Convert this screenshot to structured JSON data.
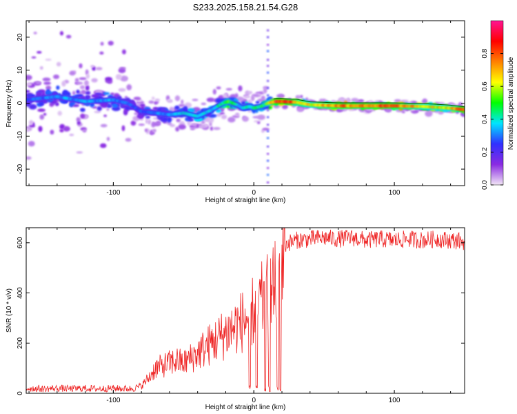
{
  "title": "S233.2025.158.21.54.G28",
  "chart_data": [
    {
      "type": "heatmap",
      "xlabel": "Height of straight line (km)",
      "ylabel": "Frequency (Hz)",
      "xlim": [
        -162,
        150
      ],
      "ylim": [
        -25,
        25
      ],
      "xticks": [
        -100,
        0,
        100
      ],
      "yticks": [
        -20,
        -10,
        0,
        10,
        20
      ],
      "colorbar": {
        "label": "Normalized spectral amplitude",
        "range": [
          0,
          1
        ],
        "ticks": [
          0.0,
          0.2,
          0.4,
          0.6,
          0.8
        ],
        "colors": [
          "#f2e6f6",
          "#8a2be2",
          "#3030ff",
          "#00e5ff",
          "#00ff00",
          "#ffff00",
          "#ff8000",
          "#ff0000",
          "#ff1493"
        ]
      },
      "ridge": {
        "x": [
          -162,
          -140,
          -120,
          -100,
          -90,
          -80,
          -70,
          -60,
          -50,
          -40,
          -30,
          -22,
          -18,
          -12,
          -8,
          -3,
          0,
          5,
          10,
          15,
          20,
          30,
          40,
          60,
          80,
          100,
          120,
          140,
          150
        ],
        "freq": [
          1.0,
          2.0,
          0.5,
          1.0,
          0.0,
          -2.5,
          -3.0,
          -3.5,
          -3.0,
          -4.0,
          -2.0,
          0.0,
          0.5,
          -0.5,
          -1.5,
          -1.0,
          -1.5,
          -1.0,
          0.0,
          0.5,
          0.5,
          0.3,
          -0.5,
          -0.8,
          -0.8,
          -0.8,
          -1.0,
          -1.5,
          -2.0
        ],
        "amplitude": [
          0.3,
          0.35,
          0.35,
          0.35,
          0.3,
          0.3,
          0.35,
          0.35,
          0.4,
          0.45,
          0.4,
          0.5,
          0.6,
          0.4,
          0.4,
          0.5,
          0.5,
          0.5,
          0.6,
          0.9,
          0.95,
          0.8,
          0.7,
          0.85,
          0.85,
          0.85,
          0.7,
          0.7,
          0.9
        ]
      }
    },
    {
      "type": "line",
      "xlabel": "Height of straight line (km)",
      "ylabel": "SNR (10 * v/v)",
      "xlim": [
        -162,
        150
      ],
      "ylim": [
        0,
        660
      ],
      "xticks": [
        -100,
        0,
        100
      ],
      "yticks": [
        0,
        200,
        400,
        600
      ],
      "color": "#ee2222",
      "series": [
        {
          "x": [
            -162,
            -150,
            -140,
            -130,
            -120,
            -110,
            -100,
            -90,
            -85,
            -80,
            -75,
            -70,
            -65,
            -60,
            -55,
            -50,
            -45,
            -40,
            -35,
            -30,
            -25,
            -20,
            -15,
            -10,
            -5,
            0,
            5,
            10,
            15,
            18,
            20,
            22,
            25,
            30,
            40,
            50,
            60,
            70,
            80,
            90,
            100,
            110,
            120,
            130,
            140,
            150
          ],
          "values": [
            20,
            18,
            20,
            18,
            20,
            18,
            20,
            18,
            20,
            30,
            60,
            100,
            110,
            120,
            130,
            120,
            140,
            160,
            180,
            200,
            220,
            240,
            260,
            280,
            300,
            330,
            360,
            390,
            420,
            470,
            550,
            590,
            600,
            610,
            615,
            620,
            615,
            620,
            610,
            615,
            610,
            615,
            610,
            615,
            610,
            605
          ]
        }
      ],
      "dropouts": [
        -3,
        2,
        8,
        11,
        17,
        19
      ]
    }
  ]
}
